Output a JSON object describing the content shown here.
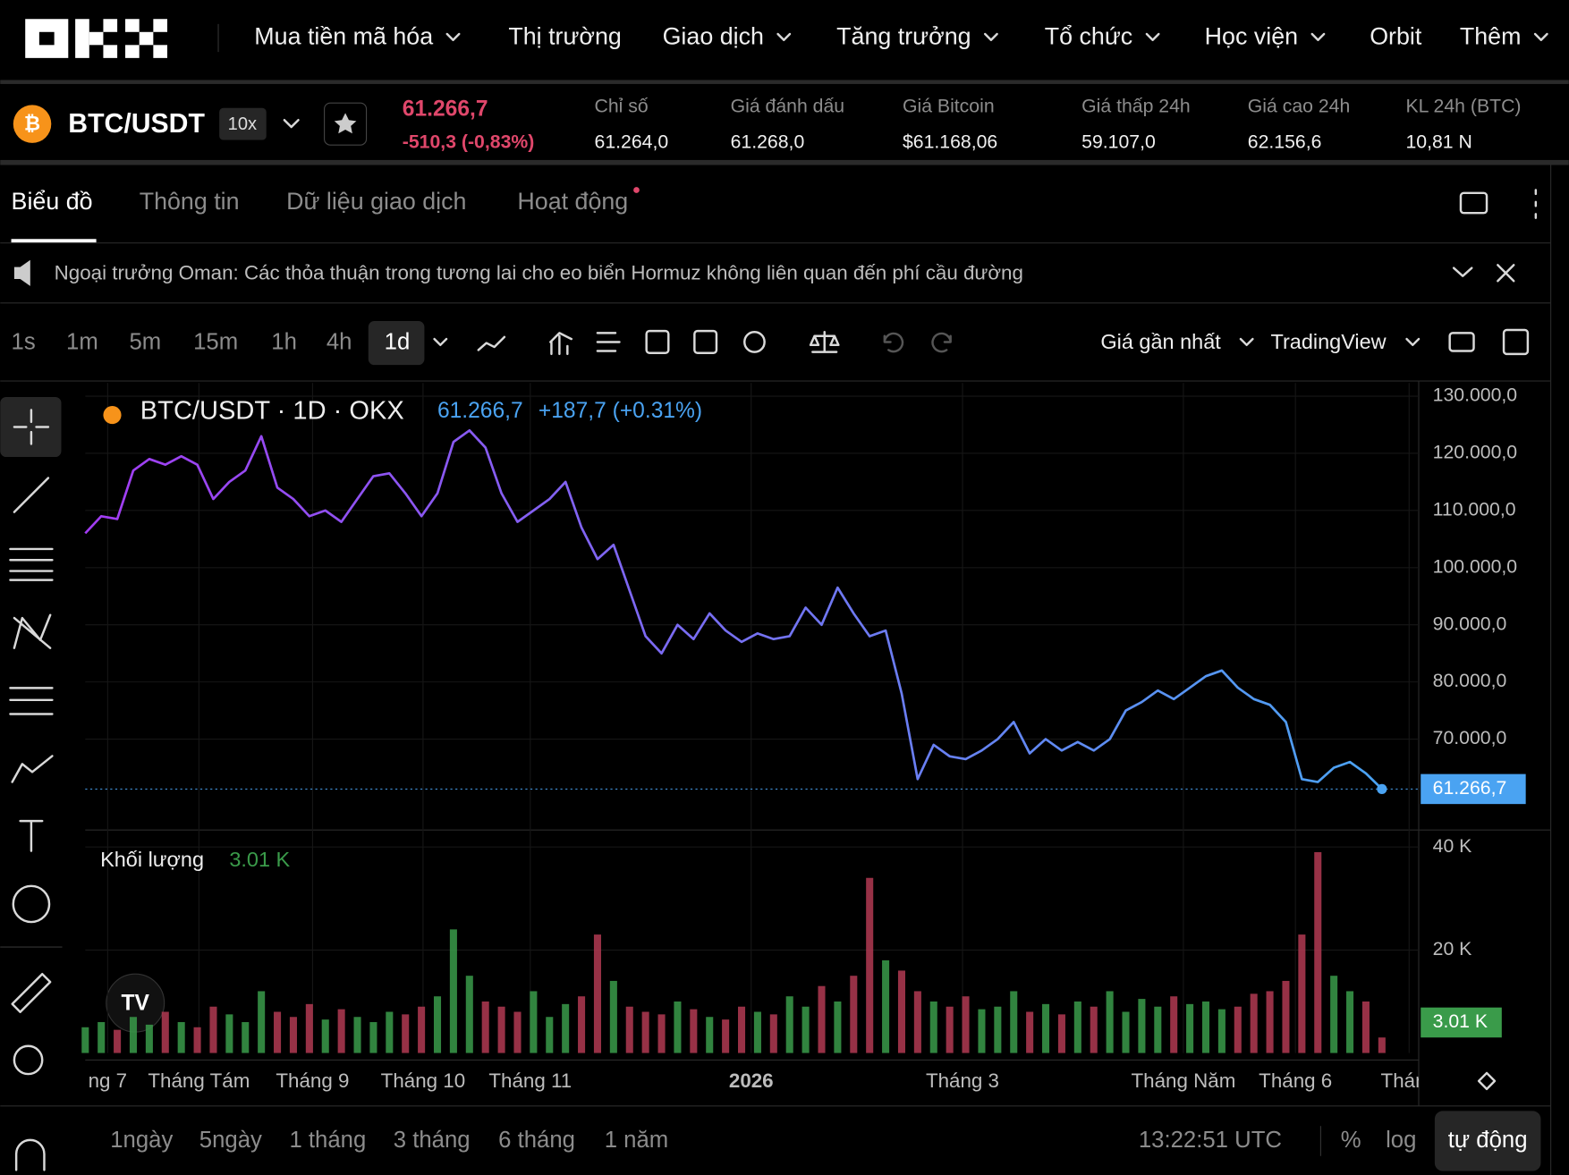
{
  "nav": {
    "items": [
      "Mua tiền mã hóa",
      "Thị trường",
      "Giao dịch",
      "Tăng trưởng",
      "Tổ chức",
      "Học viện",
      "Orbit",
      "Thêm"
    ]
  },
  "ticker": {
    "pair": "BTC/USDT",
    "leverage": "10x",
    "price": "61.266,7",
    "change": "-510,3 (-0,83%)",
    "stats": [
      {
        "label": "Chỉ số",
        "value": "61.264,0"
      },
      {
        "label": "Giá đánh dấu",
        "value": "61.268,0"
      },
      {
        "label": "Giá Bitcoin",
        "value": "$61.168,06"
      },
      {
        "label": "Giá thấp 24h",
        "value": "59.107,0"
      },
      {
        "label": "Giá cao 24h",
        "value": "62.156,6"
      },
      {
        "label": "KL 24h (BTC)",
        "value": "10,81 N"
      }
    ]
  },
  "tabs": [
    "Biểu đồ",
    "Thông tin",
    "Dữ liệu giao dịch",
    "Hoạt động"
  ],
  "news": "Ngoại trưởng Oman: Các thỏa thuận trong tương lai cho eo biển Hormuz không liên quan đến phí cầu đường",
  "toolbar": {
    "intervals": [
      "1s",
      "1m",
      "5m",
      "15m",
      "1h",
      "4h",
      "1d"
    ],
    "price_source": "Giá gần nhất",
    "chart_engine": "TradingView"
  },
  "chart_data": {
    "type": "line",
    "legend_symbol": "BTC/USDT · 1D · OKX",
    "legend_price": "61.266,7",
    "legend_change": "+187,7 (+0.31%)",
    "last_price_label": "61.266,7",
    "color_start": "#a23cf2",
    "color_end": "#4aa3f2",
    "grid": true,
    "values": [
      106000,
      109000,
      108500,
      117000,
      119000,
      118000,
      119500,
      118000,
      112000,
      115000,
      117000,
      123000,
      114000,
      112000,
      109000,
      110000,
      108000,
      112000,
      116000,
      116500,
      113000,
      109000,
      113000,
      122000,
      124000,
      121000,
      113000,
      108000,
      110000,
      112000,
      115000,
      107000,
      101500,
      104000,
      96000,
      88000,
      85000,
      90000,
      87500,
      92000,
      89000,
      87000,
      88500,
      87500,
      88000,
      93000,
      90000,
      96500,
      92000,
      88000,
      89000,
      78000,
      63000,
      69000,
      67000,
      66500,
      68000,
      70000,
      73000,
      67500,
      70000,
      68000,
      69500,
      68000,
      70000,
      75000,
      76500,
      78500,
      77000,
      79000,
      81000,
      82000,
      79000,
      77000,
      76000,
      73000,
      63000,
      62500,
      65000,
      66000,
      64000,
      61266.7
    ],
    "xlim": [
      0,
      83.3
    ],
    "xticks": [
      {
        "value": 1.4,
        "label": "ng 7"
      },
      {
        "value": 7.1,
        "label": "Tháng Tám"
      },
      {
        "value": 14.2,
        "label": "Tháng 9"
      },
      {
        "value": 21.1,
        "label": "Tháng 10"
      },
      {
        "value": 27.8,
        "label": "Tháng 11"
      },
      {
        "value": 41.6,
        "label": "2026"
      },
      {
        "value": 54.8,
        "label": "Tháng 3"
      },
      {
        "value": 68.6,
        "label": "Tháng Năm"
      },
      {
        "value": 75.6,
        "label": "Tháng 6"
      },
      {
        "value": 82.7,
        "label": "Tháng"
      }
    ],
    "ylim": [
      54100,
      132300
    ],
    "yticks": [
      {
        "value": 70000,
        "label": "70.000,0"
      },
      {
        "value": 80000,
        "label": "80.000,0"
      },
      {
        "value": 90000,
        "label": "90.000,0"
      },
      {
        "value": 100000,
        "label": "100.000,0"
      },
      {
        "value": 110000,
        "label": "110.000,0"
      },
      {
        "value": 120000,
        "label": "120.000,0"
      },
      {
        "value": 130000,
        "label": "130.000,0"
      }
    ],
    "volume": {
      "type": "bar",
      "title": "Khối lượng",
      "legend_value": "3.01 K",
      "last_value_label": "3.01 K",
      "up_color": "#3a9b4a",
      "down_color": "#b23a52",
      "values": [
        5000,
        6000,
        4500,
        7000,
        5500,
        8000,
        6000,
        5000,
        9000,
        7500,
        6000,
        12000,
        8000,
        7000,
        9500,
        6500,
        8500,
        7000,
        6000,
        8000,
        7500,
        9000,
        11000,
        24000,
        15000,
        10000,
        9000,
        8000,
        12000,
        7000,
        9500,
        11000,
        23000,
        14000,
        9000,
        8000,
        7500,
        10000,
        8500,
        7000,
        6500,
        9000,
        8000,
        7500,
        11000,
        9000,
        13000,
        10000,
        15000,
        34000,
        18000,
        16000,
        12000,
        10000,
        9000,
        11000,
        8500,
        9000,
        12000,
        8000,
        9500,
        7500,
        10000,
        9000,
        12000,
        8000,
        10500,
        9000,
        11000,
        9500,
        10000,
        8500,
        9000,
        11500,
        12000,
        14000,
        23000,
        39000,
        15000,
        12000,
        10000,
        3010
      ],
      "ylim": [
        0,
        43300
      ],
      "yticks": [
        {
          "value": 20000,
          "label": "20 K"
        },
        {
          "value": 40000,
          "label": "40 K"
        }
      ]
    }
  },
  "footer": {
    "ranges": [
      "1ngày",
      "5ngày",
      "1 tháng",
      "3 tháng",
      "6 tháng",
      "1 năm"
    ],
    "clock": "13:22:51 UTC",
    "percent": "%",
    "log": "log",
    "auto": "tự động"
  }
}
